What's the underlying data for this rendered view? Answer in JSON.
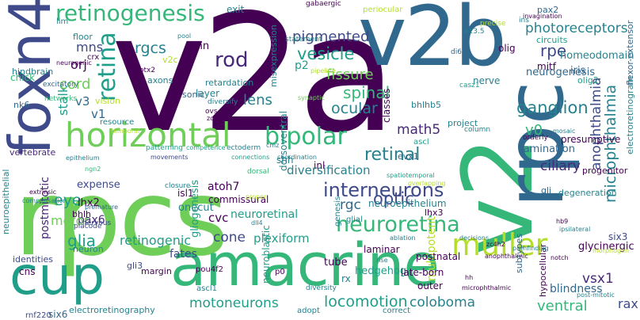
{
  "colors": {
    "background": "#ffffff",
    "dark_purple": "#440154",
    "purple": "#482878",
    "indigo": "#3e4a89",
    "blue": "#31688e",
    "teal": "#26828e",
    "green_teal": "#1f9e89",
    "green": "#35b779",
    "light_green": "#6ece58",
    "lime": "#b5de2b",
    "yellow": "#fde725"
  },
  "words": [
    "v2a",
    "rpcs",
    "v2b",
    "amacrine",
    "cup",
    "horizontal",
    "foxn4",
    "v2",
    "rpc",
    "muller",
    "retinogenesis",
    "neuroretina",
    "interneurons",
    "bipolar",
    "rod",
    "retina",
    "rgcs",
    "mns",
    "vesicle",
    "pigmented",
    "photoreceptors",
    "rpe",
    "homeodomain",
    "ganglion",
    "anophthalmia",
    "microphthalmia",
    "fissure",
    "spinal",
    "lens",
    "retinal",
    "ocular",
    "diversification",
    "optic",
    "rgc",
    "math5",
    "v0",
    "ciliary",
    "lamination",
    "neuroepithelium",
    "lhx3",
    "cone",
    "plexiform",
    "cvc",
    "neuroretinal",
    "atoh7",
    "commissural",
    "isl1",
    "onecut",
    "retinogenic",
    "glia",
    "fates",
    "motoneurons",
    "locomotion",
    "coloboma",
    "ventral",
    "rax",
    "vsx1",
    "blindness",
    "eye",
    "lhx2",
    "pax6",
    "expense",
    "postmitotic",
    "motor",
    "stalk",
    "cord",
    "orj",
    "v3",
    "v1",
    "vision",
    "resource",
    "multipotent",
    "postnatal",
    "laminar",
    "hedgehog",
    "tube",
    "late-born",
    "outer",
    "glycinergic",
    "six3",
    "progenitor",
    "degeneration",
    "hypocellular",
    "subtypes",
    "neuroblastic",
    "gliogenesis",
    "electroretinogram",
    "flexor-extensor",
    "neurogenesis",
    "presumptive",
    "iris",
    "olig2",
    "olig",
    "mitf",
    "pmn",
    "v2c",
    "layer",
    "sonic",
    "axons",
    "retardation",
    "dorsoventral",
    "misexpression",
    "p2",
    "exit",
    "floor",
    "crx",
    "hindbrain",
    "chick",
    "nk6",
    "lim",
    "neuroepithelial",
    "vertebrate",
    "cns",
    "identities",
    "neuron",
    "gli3",
    "margin",
    "six6",
    "electroretinography",
    "rnf220",
    "nervous",
    "bhlh",
    "placode",
    "ascl1",
    "pou4f2",
    "p0",
    "rx",
    "diversity",
    "adopt",
    "correct",
    "evx1",
    "ascl",
    "shh",
    "inl",
    "glial",
    "genesis",
    "classes",
    "bhlhb5",
    "project",
    "nerve",
    "casz1",
    "column",
    "circuits",
    "gli",
    "pax2",
    "e13.5",
    "ins",
    "invagination",
    "precise",
    "di6",
    "periocular",
    "gabaergic",
    "otx2",
    "pool",
    "ovs",
    "zone",
    "statement",
    "diversify",
    "pipeline",
    "synaptic",
    "excitatory",
    "networks",
    "neurogenic",
    "temporal",
    "patterning",
    "competence",
    "ectoderm",
    "movements",
    "connections",
    "coordination",
    "cmz",
    "dorsal",
    "closure",
    "ngn2",
    "extrinsic",
    "compensation",
    "premature",
    "epithelium",
    "proper",
    "orderly",
    "mosaic",
    "dll4",
    "spatiotemporal",
    "overlapping",
    "ablation",
    "decisions",
    "rise",
    "pathfinding",
    "anophthalmic",
    "notch",
    "morphogen",
    "hb9",
    "ipsilateral",
    "post-mitotic",
    "microphthalmic",
    "zc4h2",
    "hh"
  ]
}
